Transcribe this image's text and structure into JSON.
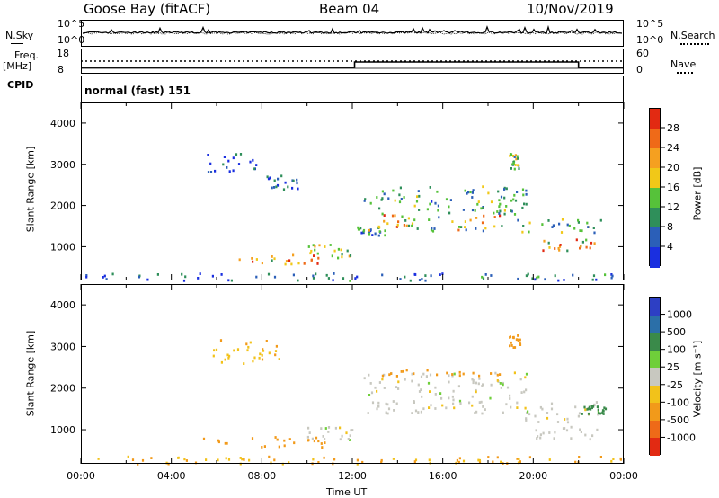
{
  "header": {
    "station": "Goose Bay (fitACF)",
    "beam": "Beam 04",
    "date": "10/Nov/2019"
  },
  "top_panels": {
    "nsky_label": "N.Sky",
    "nsky_ticks": [
      "10^5",
      "10^0"
    ],
    "nsearch_label": "N.Search",
    "nsearch_ticks": [
      "10^5",
      "10^0"
    ],
    "freq_label": "Freq.",
    "freq_unit": "[MHz]",
    "freq_ticks": [
      "18",
      "8"
    ],
    "nave_label": "Nave",
    "nave_ticks": [
      "60",
      "0"
    ],
    "cpid_label": "CPID",
    "cpid_text": "normal (fast) 151"
  },
  "colors": {
    "power": [
      "#1a2fe0",
      "#2b5fb8",
      "#2f8f5a",
      "#56c23a",
      "#f1c818",
      "#f5a020",
      "#ef6a18",
      "#e22a12"
    ],
    "velocity": [
      "#2d3fc4",
      "#2b6fa8",
      "#3a8a4a",
      "#6fcf3a",
      "#c8c8c0",
      "#f2c21a",
      "#f29a1a",
      "#ee6a18",
      "#e22a12"
    ]
  },
  "chart_data": [
    {
      "type": "heatmap",
      "name": "power",
      "ylabel": "Slant Range [km]",
      "xlabel": "",
      "ylim": [
        180,
        4500
      ],
      "xlim": [
        "00:00",
        "24:00"
      ],
      "y_ticks": [
        "1000",
        "2000",
        "3000",
        "4000"
      ],
      "colorbar": {
        "label": "Power [dB]",
        "ticks": [
          "4",
          "8",
          "12",
          "16",
          "20",
          "24",
          "28"
        ]
      },
      "regions": [
        {
          "t0": 0.2,
          "t1": 24,
          "r0": 200,
          "r1": 380,
          "value": 6
        },
        {
          "t0": 6.8,
          "t1": 10.5,
          "r0": 600,
          "r1": 850,
          "value": 24
        },
        {
          "t0": 9.8,
          "t1": 12.2,
          "r0": 750,
          "r1": 1100,
          "value": 14
        },
        {
          "t0": 12.2,
          "t1": 13.5,
          "r0": 1300,
          "r1": 1500,
          "value": 10
        },
        {
          "t0": 12.6,
          "t1": 19.3,
          "r0": 1400,
          "r1": 1800,
          "value": 22
        },
        {
          "t0": 12.5,
          "t1": 19.8,
          "r0": 1800,
          "r1": 2500,
          "value": 10
        },
        {
          "t0": 18.9,
          "t1": 19.4,
          "r0": 2900,
          "r1": 3300,
          "value": 14
        },
        {
          "t0": 19.2,
          "t1": 23.0,
          "r0": 1300,
          "r1": 1700,
          "value": 12
        },
        {
          "t0": 20.2,
          "t1": 22.8,
          "r0": 900,
          "r1": 1200,
          "value": 26
        },
        {
          "t0": 5.5,
          "t1": 8.0,
          "r0": 2800,
          "r1": 3300,
          "value": 5
        },
        {
          "t0": 8.0,
          "t1": 9.6,
          "r0": 2400,
          "r1": 2800,
          "value": 5
        }
      ]
    },
    {
      "type": "heatmap",
      "name": "velocity",
      "ylabel": "Slant Range [km]",
      "xlabel": "Time UT",
      "ylim": [
        180,
        4500
      ],
      "xlim": [
        "00:00",
        "24:00"
      ],
      "x_ticks": [
        "00:00",
        "04:00",
        "08:00",
        "12:00",
        "16:00",
        "20:00",
        "00:00"
      ],
      "y_ticks": [
        "1000",
        "2000",
        "3000",
        "4000"
      ],
      "colorbar": {
        "label": "Velocity [m s⁻¹]",
        "ticks": [
          "1000",
          "500",
          "100",
          "25",
          "-25",
          "-100",
          "-500",
          "-1000"
        ]
      },
      "regions": [
        {
          "t0": 0.2,
          "t1": 24,
          "r0": 200,
          "r1": 380,
          "value": -100
        },
        {
          "t0": 5.2,
          "t1": 10.8,
          "r0": 600,
          "r1": 850,
          "value": -300
        },
        {
          "t0": 10.0,
          "t1": 12.2,
          "r0": 750,
          "r1": 1100,
          "value": 0
        },
        {
          "t0": 12.6,
          "t1": 19.3,
          "r0": 1400,
          "r1": 1900,
          "value": 0
        },
        {
          "t0": 12.5,
          "t1": 19.8,
          "r0": 1900,
          "r1": 2400,
          "value": 0
        },
        {
          "t0": 13.0,
          "t1": 18.5,
          "r0": 2300,
          "r1": 2500,
          "value": -200
        },
        {
          "t0": 18.9,
          "t1": 19.4,
          "r0": 3000,
          "r1": 3300,
          "value": -300
        },
        {
          "t0": 19.2,
          "t1": 23.0,
          "r0": 1200,
          "r1": 1700,
          "value": 0
        },
        {
          "t0": 20.0,
          "t1": 22.8,
          "r0": 800,
          "r1": 1100,
          "value": 0
        },
        {
          "t0": 22.0,
          "t1": 23.2,
          "r0": 1400,
          "r1": 1600,
          "value": 150
        },
        {
          "t0": 5.8,
          "t1": 8.8,
          "r0": 2600,
          "r1": 3200,
          "value": -80
        }
      ]
    }
  ]
}
